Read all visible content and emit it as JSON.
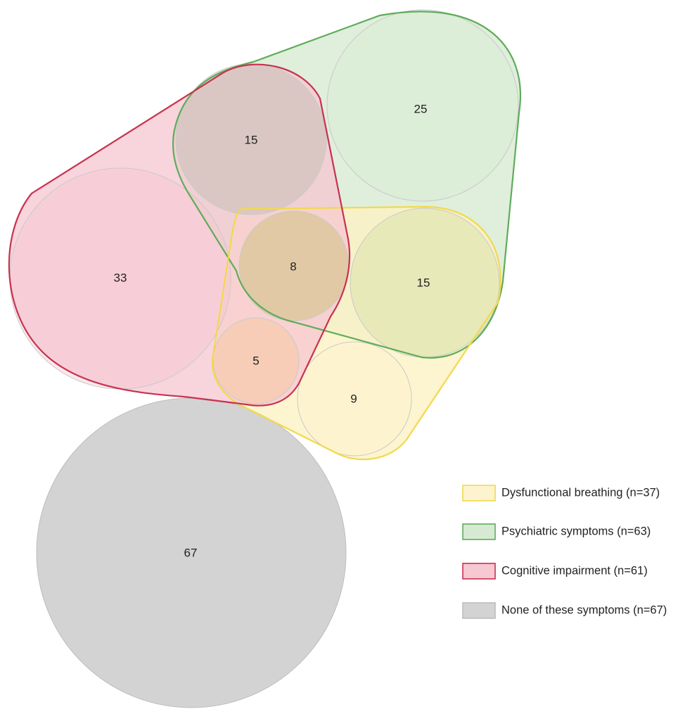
{
  "legend": [
    {
      "key": "breathing",
      "label": "Dysfunctional breathing (n=37)",
      "fill": "#fdf3cf",
      "stroke": "#f2d94b"
    },
    {
      "key": "psychiatric",
      "label": "Psychiatric symptoms (n=63)",
      "fill": "#d6ead3",
      "stroke": "#5fac5a"
    },
    {
      "key": "cognitive",
      "label": "Cognitive impairment (n=61)",
      "fill": "#f5c8d2",
      "stroke": "#c8324f"
    },
    {
      "key": "none",
      "label": "None of these symptoms (n=67)",
      "fill": "#d3d3d3",
      "stroke": "#bdbdbd"
    }
  ],
  "regions": {
    "cognitive_only": "33",
    "cognitive_psychiatric": "15",
    "psychiatric_only": "25",
    "all_three": "8",
    "psychiatric_breathing": "15",
    "cognitive_breathing": "5",
    "breathing_only": "9",
    "none": "67"
  }
}
